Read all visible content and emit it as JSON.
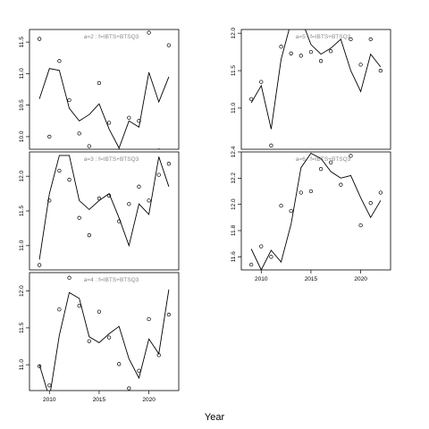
{
  "chart_data": {
    "type": "scatter",
    "xlabel": "Year",
    "panels": [
      {
        "title": "a=2  :  f=IBTS+BTSQ3",
        "xlim": [
          2008,
          2023
        ],
        "ylim": [
          9.8,
          11.7
        ],
        "yticks": [
          10.0,
          10.5,
          11.0,
          11.5
        ],
        "show_xticks": false,
        "observed": {
          "x": [
            2009,
            2010,
            2011,
            2012,
            2013,
            2014,
            2015,
            2016,
            2017,
            2018,
            2019,
            2020,
            2021,
            2022
          ],
          "y": [
            11.55,
            10.0,
            11.2,
            10.58,
            10.05,
            9.85,
            10.85,
            10.22,
            9.78,
            10.3,
            10.25,
            11.65,
            9.78,
            11.45
          ]
        },
        "fitted": {
          "x": [
            2009,
            2010,
            2011,
            2012,
            2013,
            2014,
            2015,
            2016,
            2017,
            2018,
            2019,
            2020,
            2021,
            2022
          ],
          "y": [
            10.6,
            11.08,
            11.05,
            10.45,
            10.25,
            10.35,
            10.52,
            10.12,
            9.82,
            10.25,
            10.15,
            11.02,
            10.55,
            10.95
          ]
        }
      },
      {
        "title": "a=3  :  f=IBTS+BTSQ3",
        "xlim": [
          2008,
          2023
        ],
        "ylim": [
          10.65,
          12.35
        ],
        "yticks": [
          11.0,
          11.5,
          12.0
        ],
        "show_xticks": false,
        "observed": {
          "x": [
            2009,
            2010,
            2011,
            2012,
            2013,
            2014,
            2015,
            2016,
            2017,
            2018,
            2019,
            2020,
            2021,
            2022
          ],
          "y": [
            10.72,
            11.65,
            12.08,
            11.95,
            11.4,
            11.15,
            11.68,
            11.72,
            11.35,
            11.6,
            11.85,
            11.65,
            12.02,
            12.18
          ]
        },
        "fitted": {
          "x": [
            2009,
            2010,
            2011,
            2012,
            2013,
            2014,
            2015,
            2016,
            2017,
            2018,
            2019,
            2020,
            2021,
            2022
          ],
          "y": [
            10.8,
            11.75,
            12.3,
            12.3,
            11.65,
            11.52,
            11.65,
            11.75,
            11.4,
            11.0,
            11.6,
            11.45,
            12.28,
            11.85
          ]
        }
      },
      {
        "title": "a=4  :  f=IBTS+BTSQ3",
        "xlim": [
          2008,
          2023
        ],
        "ylim": [
          10.65,
          12.25
        ],
        "yticks": [
          11.0,
          11.5,
          12.0
        ],
        "show_xticks": true,
        "xticks": [
          2010,
          2015,
          2020
        ],
        "observed": {
          "x": [
            2009,
            2010,
            2011,
            2012,
            2013,
            2014,
            2015,
            2016,
            2017,
            2018,
            2019,
            2020,
            2021,
            2022
          ],
          "y": [
            10.98,
            10.72,
            11.75,
            12.18,
            11.8,
            11.32,
            11.72,
            11.37,
            11.01,
            10.68,
            10.92,
            11.62,
            11.13,
            11.68
          ]
        },
        "fitted": {
          "x": [
            2009,
            2010,
            2011,
            2012,
            2013,
            2014,
            2015,
            2016,
            2017,
            2018,
            2019,
            2020,
            2021,
            2022
          ],
          "y": [
            11.0,
            10.55,
            11.4,
            11.98,
            11.9,
            11.38,
            11.3,
            11.42,
            11.52,
            11.08,
            10.82,
            11.35,
            11.15,
            12.02
          ]
        }
      },
      {
        "title": "a=5  :  f=IBTS+BTSQ3",
        "xlim": [
          2008,
          2023
        ],
        "ylim": [
          10.45,
          12.05
        ],
        "yticks": [
          11.0,
          11.5,
          12.0
        ],
        "show_xticks": false,
        "observed": {
          "x": [
            2009,
            2010,
            2011,
            2012,
            2013,
            2014,
            2015,
            2016,
            2017,
            2018,
            2019,
            2020,
            2021,
            2022
          ],
          "y": [
            11.12,
            11.35,
            10.5,
            11.82,
            11.73,
            11.7,
            11.75,
            11.63,
            11.76,
            12.08,
            11.92,
            11.58,
            11.92,
            11.5
          ]
        },
        "fitted": {
          "x": [
            2009,
            2010,
            2011,
            2012,
            2013,
            2014,
            2015,
            2016,
            2017,
            2018,
            2019,
            2020,
            2021,
            2022
          ],
          "y": [
            11.07,
            11.3,
            10.72,
            11.65,
            12.15,
            12.2,
            11.85,
            11.72,
            11.8,
            11.92,
            11.5,
            11.22,
            11.72,
            11.55
          ]
        }
      },
      {
        "title": "a=6  :  f=IBTS+BTSQ3",
        "xlim": [
          2008,
          2023
        ],
        "ylim": [
          11.5,
          12.4
        ],
        "yticks": [
          11.6,
          11.8,
          12.0,
          12.2,
          12.4
        ],
        "show_xticks": true,
        "xticks": [
          2010,
          2015,
          2020
        ],
        "observed": {
          "x": [
            2009,
            2010,
            2011,
            2012,
            2013,
            2014,
            2015,
            2016,
            2017,
            2018,
            2019,
            2020,
            2021,
            2022
          ],
          "y": [
            11.54,
            11.68,
            11.6,
            11.99,
            11.95,
            12.09,
            12.1,
            12.27,
            12.32,
            12.15,
            12.37,
            11.84,
            12.01,
            12.09
          ]
        },
        "fitted": {
          "x": [
            2009,
            2010,
            2011,
            2012,
            2013,
            2014,
            2015,
            2016,
            2017,
            2018,
            2019,
            2020,
            2021,
            2022
          ],
          "y": [
            11.66,
            11.5,
            11.65,
            11.56,
            11.85,
            12.28,
            12.39,
            12.35,
            12.25,
            12.2,
            12.22,
            12.05,
            11.9,
            12.03
          ]
        }
      }
    ]
  }
}
